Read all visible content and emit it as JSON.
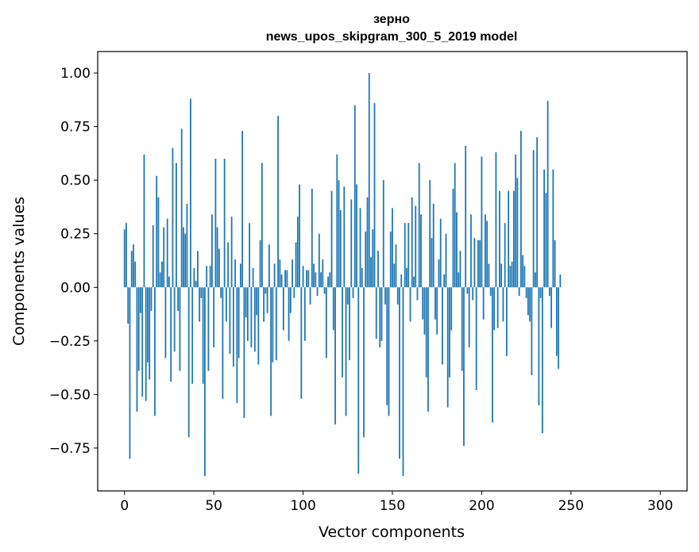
{
  "chart_data": {
    "type": "bar",
    "title": "зерно",
    "subtitle": "news_upos_skipgram_300_5_2019 model",
    "xlabel": "Vector components",
    "ylabel": "Components values",
    "xlim": [
      -15,
      315
    ],
    "ylim": [
      -0.95,
      1.1
    ],
    "xticks": [
      0,
      50,
      100,
      150,
      200,
      250,
      300
    ],
    "xtick_labels": [
      "0",
      "50",
      "100",
      "150",
      "200",
      "250",
      "300"
    ],
    "yticks": [
      -0.75,
      -0.5,
      -0.25,
      0.0,
      0.25,
      0.5,
      0.75,
      1.0
    ],
    "ytick_labels": [
      "−0.75",
      "−0.50",
      "−0.25",
      "0.00",
      "0.25",
      "0.50",
      "0.75",
      "1.00"
    ],
    "grid": false,
    "bar_color": "#1f77b4",
    "values": [
      0.27,
      0.3,
      -0.17,
      -0.8,
      0.17,
      0.2,
      0.12,
      -0.58,
      -0.39,
      -0.12,
      -0.51,
      0.62,
      -0.53,
      -0.35,
      -0.43,
      -0.11,
      0.29,
      -0.6,
      0.52,
      0.42,
      0.07,
      0.12,
      0.28,
      -0.33,
      0.32,
      0.05,
      -0.44,
      0.65,
      -0.3,
      0.58,
      -0.11,
      -0.39,
      0.74,
      0.28,
      0.25,
      0.39,
      -0.7,
      0.88,
      -0.45,
      0.09,
      0.03,
      0.17,
      -0.16,
      -0.05,
      -0.45,
      -0.88,
      0.1,
      -0.39,
      0.1,
      0.34,
      -0.28,
      0.6,
      0.28,
      0.18,
      -0.05,
      -0.52,
      0.6,
      -0.16,
      0.21,
      -0.31,
      0.33,
      -0.37,
      0.13,
      -0.54,
      -0.33,
      0.11,
      0.73,
      -0.61,
      -0.14,
      -0.25,
      0.3,
      -0.28,
      0.09,
      -0.3,
      -0.13,
      -0.36,
      0.22,
      0.58,
      -0.16,
      -0.03,
      -0.12,
      0.2,
      -0.6,
      -0.35,
      0.11,
      -0.34,
      0.8,
      0.13,
      0.06,
      -0.2,
      0.08,
      0.08,
      -0.25,
      -0.12,
      0.13,
      -0.05,
      0.21,
      0.33,
      0.48,
      -0.52,
      0.1,
      -0.25,
      0.08,
      0.08,
      -0.08,
      0.46,
      0.11,
      0.07,
      -0.04,
      0.25,
      0.07,
      0.13,
      -0.03,
      -0.33,
      0.05,
      0.07,
      0.45,
      -0.2,
      -0.64,
      0.62,
      0.5,
      0.36,
      -0.42,
      0.47,
      -0.6,
      -0.08,
      -0.34,
      0.41,
      -0.05,
      0.85,
      0.48,
      -0.87,
      0.37,
      0.09,
      -0.7,
      0.26,
      0.42,
      1.0,
      0.14,
      0.27,
      0.86,
      -0.24,
      0.17,
      -0.28,
      -0.25,
      0.5,
      -0.08,
      -0.55,
      -0.6,
      0.26,
      0.37,
      0.11,
      0.2,
      -0.08,
      -0.8,
      0.06,
      -0.88,
      0.3,
      0.09,
      0.3,
      -0.16,
      0.42,
      0.05,
      0.38,
      -0.06,
      0.58,
      0.34,
      -0.15,
      -0.22,
      -0.42,
      -0.58,
      0.5,
      0.23,
      0.39,
      -0.15,
      -0.22,
      0.13,
      0.32,
      -0.36,
      0.06,
      0.25,
      -0.56,
      -0.42,
      -0.2,
      0.46,
      0.58,
      0.35,
      0.07,
      0.17,
      -0.39,
      -0.74,
      0.66,
      -0.03,
      -0.28,
      0.34,
      -0.06,
      0.23,
      -0.48,
      0.22,
      0.22,
      0.61,
      -0.15,
      0.34,
      0.31,
      0.11,
      -0.04,
      -0.63,
      -0.2,
      0.63,
      -0.19,
      0.45,
      0.11,
      -0.16,
      0.3,
      -0.32,
      0.45,
      0.1,
      0.12,
      0.45,
      0.62,
      0.51,
      -0.04,
      0.73,
      0.15,
      0.1,
      -0.05,
      -0.13,
      -0.16,
      -0.41,
      0.64,
      0.07,
      0.7,
      -0.55,
      -0.05,
      -0.68,
      0.55,
      0.44,
      0.87,
      -0.04,
      -0.19,
      0.55,
      0.22,
      -0.32,
      -0.38,
      0.06
    ]
  }
}
